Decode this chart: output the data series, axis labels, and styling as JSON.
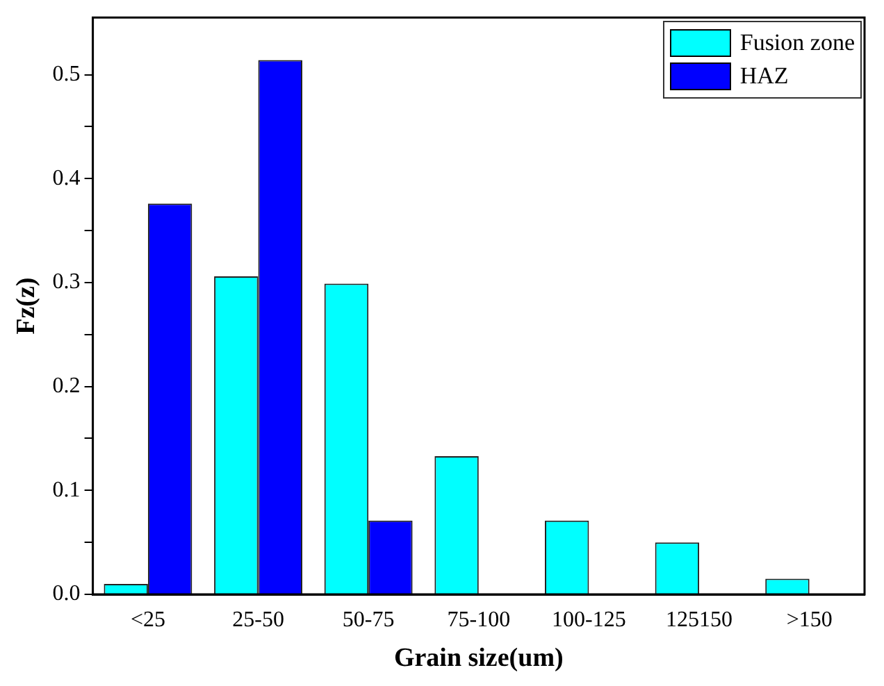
{
  "chart_data": {
    "type": "bar",
    "xlabel": "Grain size(um)",
    "ylabel": "Fz(z)",
    "categories": [
      "<25",
      "25-50",
      "50-75",
      "75-100",
      "100-125",
      "125150",
      ">150"
    ],
    "series": [
      {
        "name": "Fusion zone",
        "color": "#00ffff",
        "values": [
          0.01,
          0.306,
          0.299,
          0.133,
          0.071,
          0.05,
          0.015
        ]
      },
      {
        "name": "HAZ",
        "color": "#0000ff",
        "values": [
          0.376,
          0.514,
          0.071,
          0,
          0,
          0,
          0
        ]
      }
    ],
    "ylim": [
      0,
      0.555
    ],
    "yticks": [
      {
        "value": 0,
        "label": "0.0"
      },
      {
        "value": 0.05,
        "label": null
      },
      {
        "value": 0.1,
        "label": "0.1"
      },
      {
        "value": 0.15,
        "label": null
      },
      {
        "value": 0.2,
        "label": "0.2"
      },
      {
        "value": 0.25,
        "label": null
      },
      {
        "value": 0.3,
        "label": "0.3"
      },
      {
        "value": 0.35,
        "label": null
      },
      {
        "value": 0.4,
        "label": "0.4"
      },
      {
        "value": 0.45,
        "label": null
      },
      {
        "value": 0.5,
        "label": "0.5"
      }
    ],
    "grid": false,
    "legend": "top right"
  }
}
